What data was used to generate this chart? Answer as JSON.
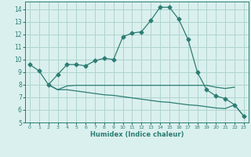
{
  "line1_x": [
    0,
    1,
    2,
    3,
    4,
    5,
    6,
    7,
    8,
    9,
    10,
    11,
    12,
    13,
    14,
    15,
    16,
    17,
    18,
    19,
    20,
    21,
    22,
    23
  ],
  "line1_y": [
    9.6,
    9.1,
    8.0,
    8.8,
    9.6,
    9.6,
    9.5,
    9.9,
    10.1,
    10.0,
    11.8,
    12.1,
    12.2,
    13.1,
    14.15,
    14.15,
    13.2,
    11.6,
    9.0,
    7.6,
    7.1,
    6.9,
    6.4,
    5.5
  ],
  "line2_x": [
    2,
    3,
    4,
    5,
    6,
    7,
    8,
    9,
    10,
    11,
    12,
    13,
    14,
    15,
    16,
    17,
    18,
    19,
    20,
    21,
    22
  ],
  "line2_y": [
    8.0,
    7.6,
    7.9,
    7.95,
    7.95,
    7.95,
    7.95,
    7.95,
    7.95,
    7.95,
    7.95,
    7.95,
    7.95,
    7.95,
    7.95,
    7.95,
    7.95,
    7.95,
    7.8,
    7.7,
    7.8
  ],
  "line3_x": [
    2,
    3,
    4,
    5,
    6,
    7,
    8,
    9,
    10,
    11,
    12,
    13,
    14,
    15,
    16,
    17,
    18,
    19,
    20,
    21,
    22,
    23
  ],
  "line3_y": [
    8.0,
    7.6,
    7.6,
    7.5,
    7.4,
    7.3,
    7.2,
    7.15,
    7.05,
    6.95,
    6.85,
    6.75,
    6.65,
    6.6,
    6.5,
    6.4,
    6.35,
    6.25,
    6.15,
    6.1,
    6.4,
    5.5
  ],
  "line_color": "#2d7d74",
  "bg_color": "#daf0ee",
  "grid_color": "#aed4ce",
  "xlabel": "Humidex (Indice chaleur)",
  "xlim": [
    -0.5,
    23.5
  ],
  "ylim": [
    5,
    14.6
  ],
  "yticks": [
    5,
    6,
    7,
    8,
    9,
    10,
    11,
    12,
    13,
    14
  ],
  "xticks": [
    0,
    1,
    2,
    3,
    4,
    5,
    6,
    7,
    8,
    9,
    10,
    11,
    12,
    13,
    14,
    15,
    16,
    17,
    18,
    19,
    20,
    21,
    22,
    23
  ],
  "marker": "D",
  "markersize": 2.5
}
